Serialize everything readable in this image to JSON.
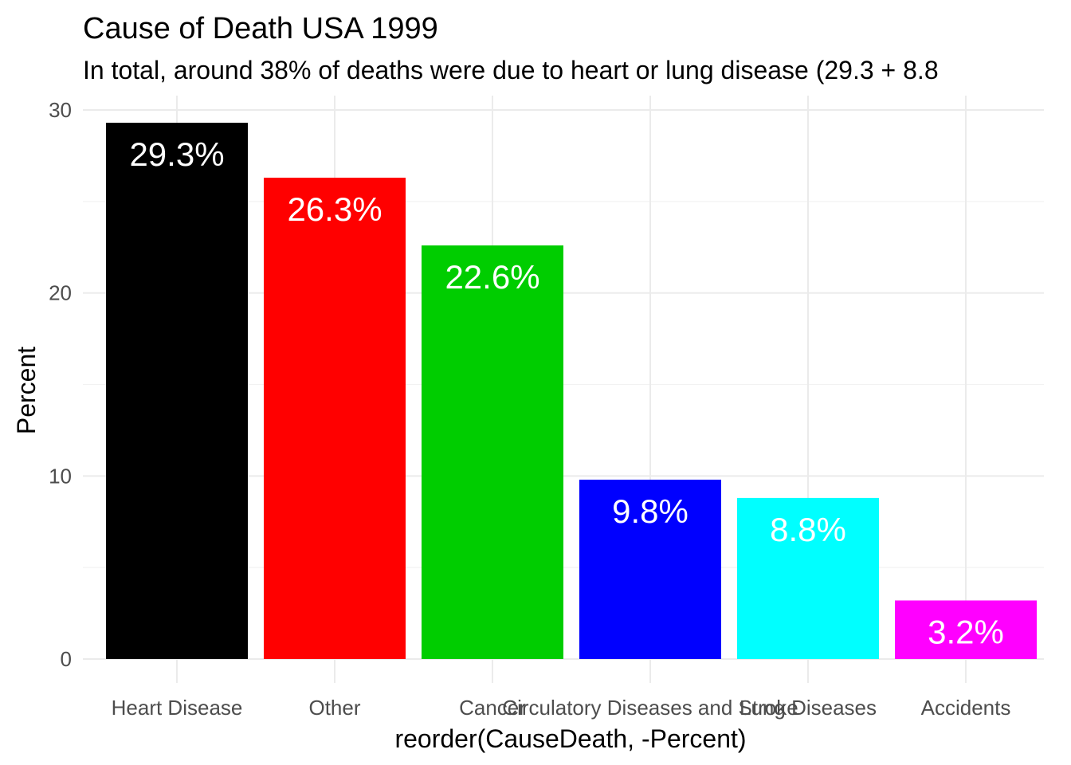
{
  "chart_data": {
    "type": "bar",
    "title": "Cause of Death USA 1999",
    "subtitle": "In total, around 38% of deaths were due to heart or lung disease (29.3 + 8.8",
    "xlabel": "reorder(CauseDeath, -Percent)",
    "ylabel": "Percent",
    "categories": [
      "Heart Disease",
      "Other",
      "Cancer",
      "Circulatory Diseases and Stroke",
      "Lung Diseases",
      "Accidents"
    ],
    "values": [
      29.3,
      26.3,
      22.6,
      9.8,
      8.8,
      3.2
    ],
    "labels": [
      "29.3%",
      "26.3%",
      "22.6%",
      "9.8%",
      "8.8%",
      "3.2%"
    ],
    "colors": [
      "#000000",
      "#ff0000",
      "#00cd00",
      "#0000ff",
      "#00ffff",
      "#ff00ff"
    ],
    "ylim": [
      0,
      30
    ],
    "yticks": [
      0,
      10,
      20,
      30
    ],
    "grid": true,
    "legend": "none"
  }
}
